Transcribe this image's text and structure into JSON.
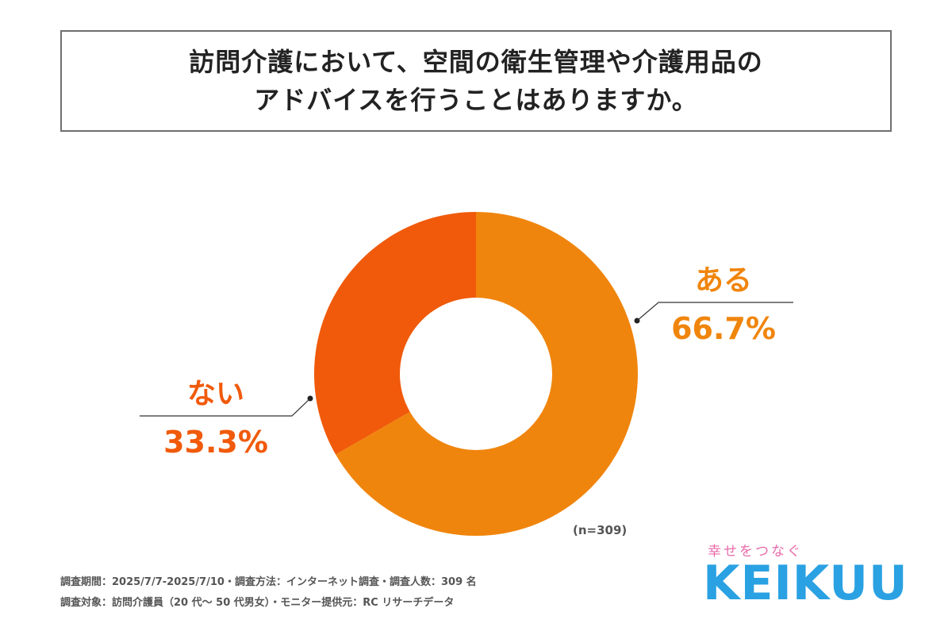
{
  "title": {
    "line1": "訪問介護において、空間の衛生管理や介護用品の",
    "line2": "アドバイスを行うことはありますか。"
  },
  "chart_data": {
    "type": "pie",
    "donut": true,
    "slices": [
      {
        "label": "ある",
        "value": 66.7,
        "value_label": "66.7%",
        "color": "#f0850d"
      },
      {
        "label": "ない",
        "value": 33.3,
        "value_label": "33.3%",
        "color": "#f05a0a"
      }
    ],
    "sample_size": "(n=309)"
  },
  "footnotes": {
    "line1": "調査期間：2025/7/7-2025/7/10・調査方法：インターネット調査・調査人数：309 名",
    "line2": "調査対象：訪問介護員（20 代〜 50 代男女）・モニター提供元：RC リサーチデータ"
  },
  "brand": {
    "tagline": "幸せをつなぐ",
    "logo": "KEIKUU",
    "logo_color": "#2aa1e2",
    "tagline_color": "#e86aa8"
  }
}
